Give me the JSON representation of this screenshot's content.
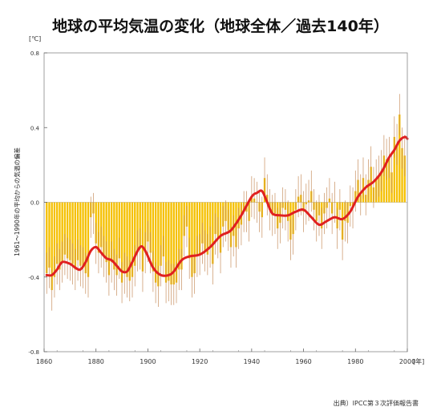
{
  "title": "地球の平均気温の変化（地球全体／過去140年）",
  "source": "出典）IPCC第３次評価報告書",
  "chart_data": {
    "type": "bar",
    "title": "地球の平均気温の変化（地球全体／過去140年）",
    "ylabel": "1961〜1990年の平均からの気温の偏差",
    "yunit": "[℃]",
    "xunit": "[年]",
    "xlim": [
      1860,
      2000
    ],
    "ylim": [
      -0.8,
      0.8
    ],
    "yticks": [
      "0.8",
      "0.4",
      "0.0",
      "-0.4",
      "-0.8"
    ],
    "xticks": [
      "1860",
      "1880",
      "1900",
      "1920",
      "1940",
      "1960",
      "1980",
      "2000"
    ],
    "bar_color": "#f5c000",
    "error_color": "#c89060",
    "smooth_color": "#e02020",
    "bars": {
      "x_start": 1861,
      "values": [
        -0.38,
        -0.35,
        -0.47,
        -0.4,
        -0.33,
        -0.36,
        -0.32,
        -0.28,
        -0.3,
        -0.31,
        -0.33,
        -0.36,
        -0.31,
        -0.34,
        -0.35,
        -0.38,
        -0.4,
        -0.08,
        -0.06,
        -0.22,
        -0.27,
        -0.24,
        -0.29,
        -0.32,
        -0.39,
        -0.32,
        -0.36,
        -0.39,
        -0.3,
        -0.43,
        -0.38,
        -0.4,
        -0.42,
        -0.4,
        -0.34,
        -0.26,
        -0.25,
        -0.37,
        -0.27,
        -0.21,
        -0.27,
        -0.37,
        -0.43,
        -0.45,
        -0.34,
        -0.29,
        -0.43,
        -0.42,
        -0.44,
        -0.44,
        -0.43,
        -0.36,
        -0.36,
        -0.18,
        -0.13,
        -0.3,
        -0.4,
        -0.38,
        -0.29,
        -0.28,
        -0.22,
        -0.26,
        -0.28,
        -0.24,
        -0.33,
        -0.17,
        -0.19,
        -0.27,
        -0.13,
        -0.1,
        -0.15,
        -0.24,
        -0.18,
        -0.24,
        -0.14,
        -0.12,
        -0.05,
        -0.05,
        -0.1,
        0.03,
        0.02,
        0.0,
        -0.05,
        -0.08,
        0.13,
        0.04,
        -0.04,
        -0.07,
        -0.06,
        -0.14,
        -0.11,
        -0.03,
        -0.04,
        -0.1,
        -0.2,
        -0.17,
        -0.04,
        0.03,
        0.04,
        -0.05,
        -0.01,
        0.01,
        0.06,
        -0.04,
        -0.1,
        -0.07,
        -0.14,
        -0.06,
        -0.03,
        0.02,
        -0.06,
        0.0,
        -0.14,
        -0.04,
        -0.2,
        -0.1,
        -0.11,
        -0.02,
        -0.03,
        0.06,
        0.12,
        0.04,
        0.13,
        0.04,
        0.12,
        0.19,
        0.08,
        0.12,
        0.14,
        0.17,
        0.25,
        0.23,
        0.24,
        0.16,
        0.35,
        0.31,
        0.47,
        0.29,
        0.25
      ],
      "err": 0.11
    },
    "smooth": {
      "x": [
        1861,
        1863,
        1865,
        1867,
        1870,
        1872,
        1874,
        1876,
        1878,
        1880,
        1882,
        1884,
        1886,
        1888,
        1890,
        1892,
        1894,
        1897,
        1899,
        1902,
        1905,
        1908,
        1910,
        1913,
        1916,
        1920,
        1924,
        1928,
        1932,
        1936,
        1940,
        1942,
        1944,
        1946,
        1948,
        1951,
        1954,
        1957,
        1960,
        1963,
        1966,
        1969,
        1972,
        1975,
        1978,
        1981,
        1984,
        1987,
        1990,
        1993,
        1995,
        1997,
        1999,
        2000
      ],
      "y": [
        -0.39,
        -0.39,
        -0.36,
        -0.32,
        -0.33,
        -0.35,
        -0.36,
        -0.32,
        -0.26,
        -0.24,
        -0.27,
        -0.3,
        -0.31,
        -0.34,
        -0.37,
        -0.37,
        -0.32,
        -0.24,
        -0.26,
        -0.35,
        -0.39,
        -0.39,
        -0.37,
        -0.31,
        -0.29,
        -0.28,
        -0.24,
        -0.18,
        -0.15,
        -0.07,
        0.03,
        0.05,
        0.06,
        0.0,
        -0.06,
        -0.07,
        -0.07,
        -0.05,
        -0.04,
        -0.08,
        -0.12,
        -0.1,
        -0.08,
        -0.09,
        -0.05,
        0.03,
        0.08,
        0.11,
        0.16,
        0.24,
        0.28,
        0.33,
        0.35,
        0.34
      ]
    }
  }
}
